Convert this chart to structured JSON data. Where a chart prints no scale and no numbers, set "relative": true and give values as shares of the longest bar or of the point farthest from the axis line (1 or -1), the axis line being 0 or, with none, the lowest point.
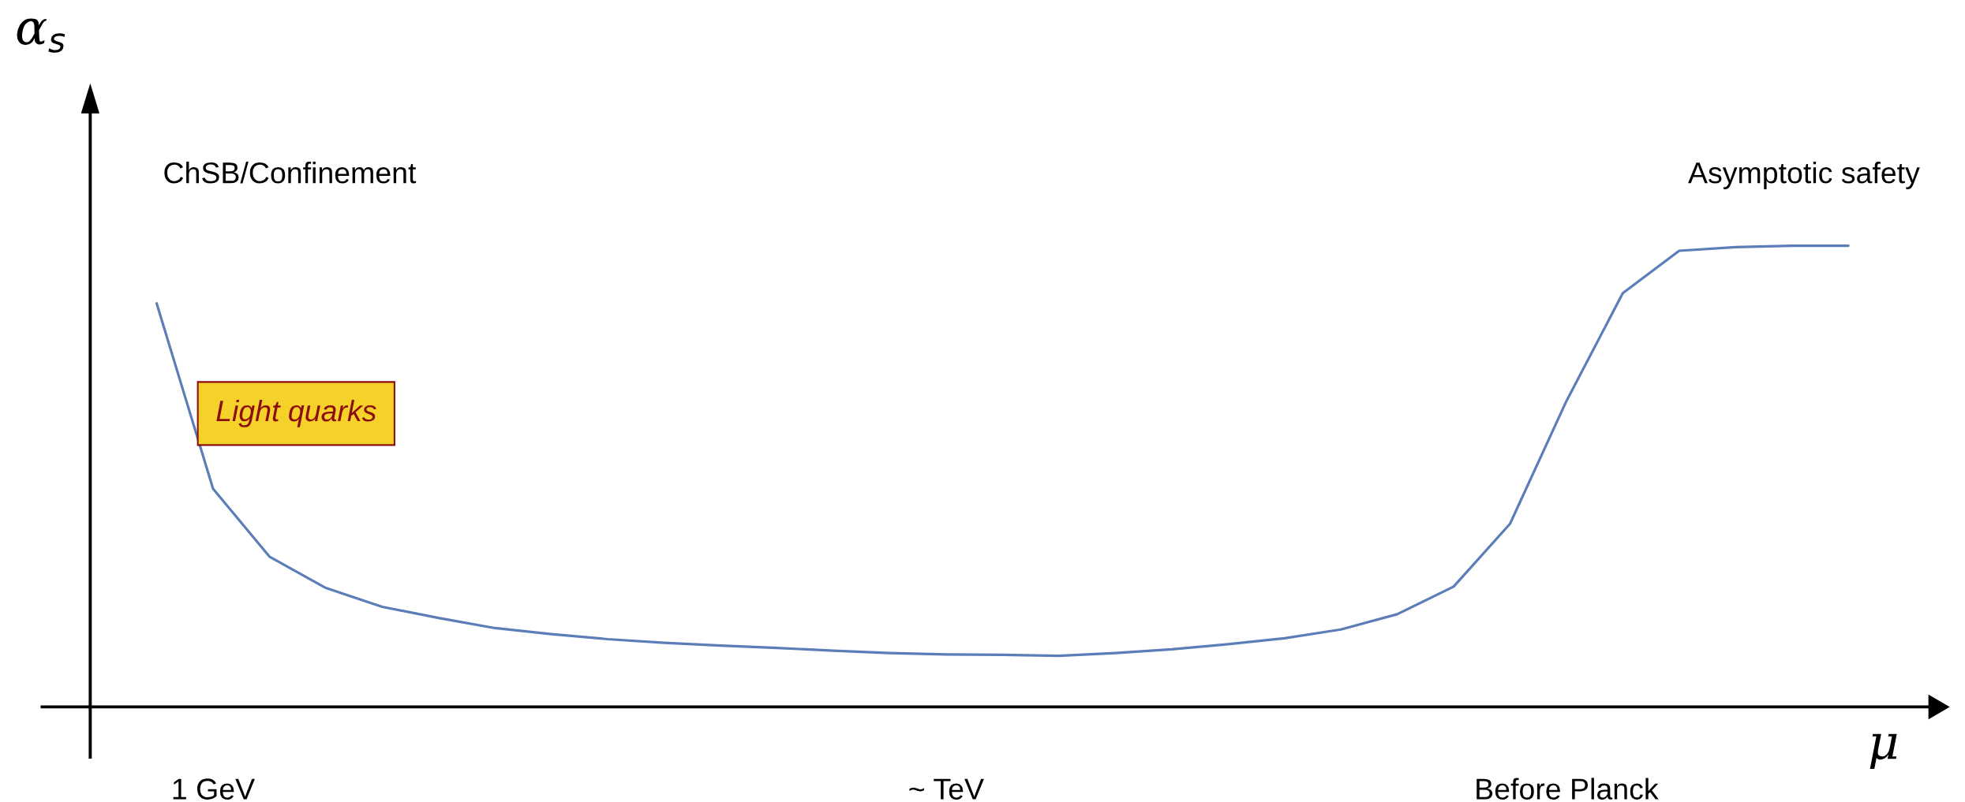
{
  "chart_data": {
    "type": "line",
    "relative": true,
    "xlabel": "μ",
    "ylabel": "α$_{s}$",
    "categories": [
      null,
      "1 GeV",
      null,
      null,
      null,
      null,
      null,
      null,
      null,
      null,
      null,
      null,
      null,
      null,
      "~ TeV",
      null,
      null,
      null,
      null,
      null,
      null,
      null,
      null,
      null,
      null,
      "Before Planck",
      null,
      null,
      null,
      null,
      null
    ],
    "series": [
      {
        "color": "#5b7db8",
        "values": [
          0.875,
          0.473,
          0.326,
          0.258,
          0.217,
          0.193,
          0.171,
          0.158,
          0.147,
          0.139,
          0.133,
          0.128,
          0.122,
          0.117,
          0.114,
          0.113,
          0.111,
          0.117,
          0.125,
          0.136,
          0.149,
          0.168,
          0.201,
          0.261,
          0.397,
          0.663,
          0.897,
          0.989,
          0.997,
          1.0,
          1.0
        ]
      }
    ],
    "grid": false,
    "marker": "none",
    "line_style": "solid",
    "annotations": [
      "ChSB/Confinement",
      "Asymptotic safety",
      "Light quarks"
    ]
  }
}
